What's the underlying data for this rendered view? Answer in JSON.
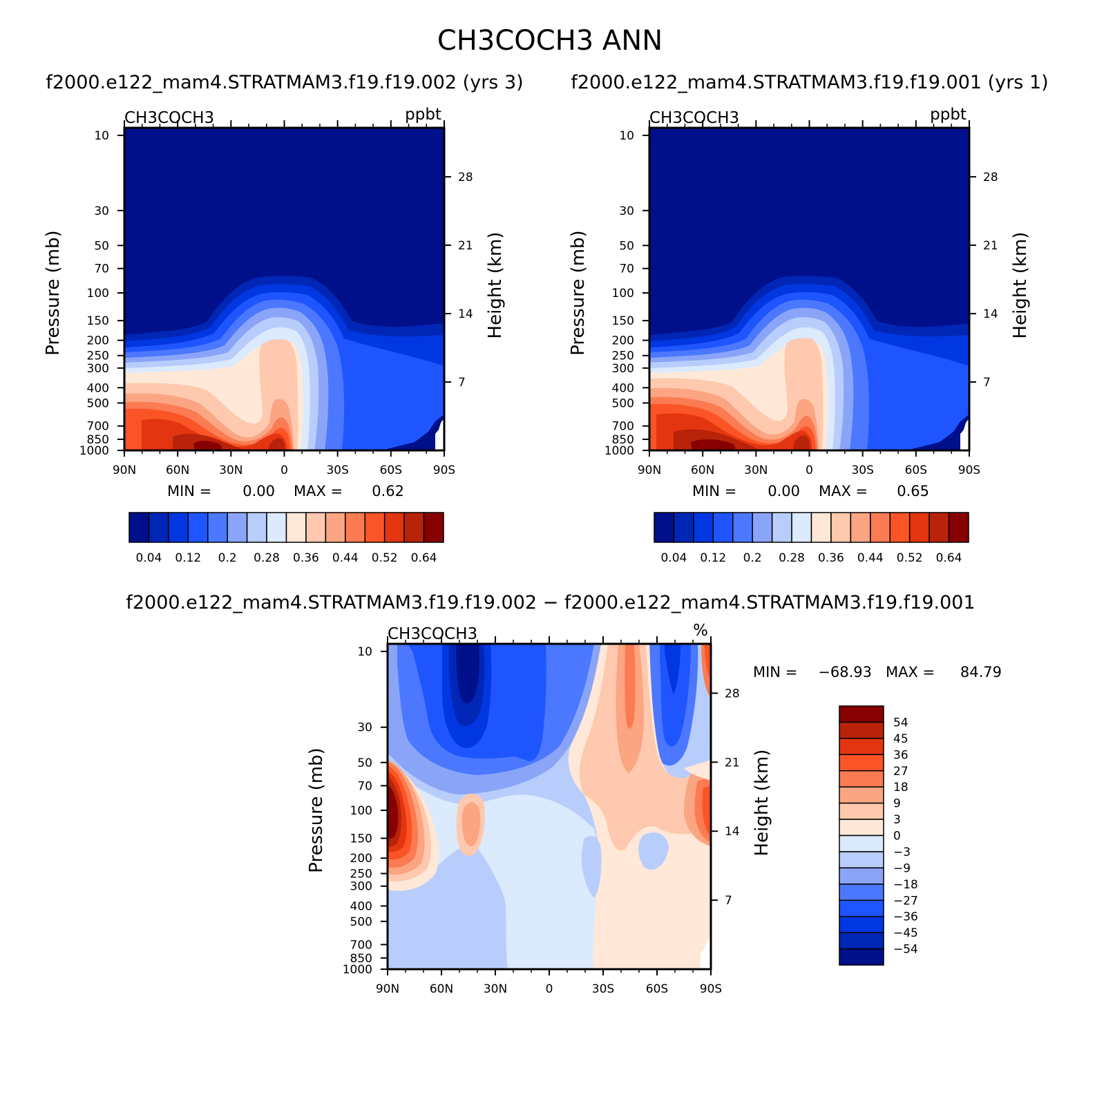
{
  "chart_data": [
    {
      "type": "contour",
      "panel": "left",
      "case_title": "f2000.e122_mam4.STRATMAM3.f19.f19.002 (yrs 3)",
      "variable": "CH3COCH3",
      "units": "ppbt",
      "ylabel_left": "Pressure (mb)",
      "ylabel_right": "Height (km)",
      "pressure_ticks": [
        "10",
        "30",
        "50",
        "70",
        "100",
        "150",
        "200",
        "250",
        "300",
        "400",
        "500",
        "700",
        "850",
        "1000"
      ],
      "height_ticks": [
        "28",
        "21",
        "14",
        "7"
      ],
      "lat_ticks": [
        "90N",
        "60N",
        "30N",
        "0",
        "30S",
        "60S",
        "90S"
      ],
      "min_label": "MIN =",
      "min_value": "0.00",
      "max_label": "MAX =",
      "max_value": "0.62",
      "colorbar_labels": [
        "0.04",
        "0.12",
        "0.2",
        "0.28",
        "0.36",
        "0.44",
        "0.52",
        "0.64"
      ],
      "colorbar_colors": [
        "#000f8a",
        "#0026b5",
        "#0037e0",
        "#1f55ff",
        "#4b78ff",
        "#8aa5f8",
        "#b8cdfc",
        "#dbeafc",
        "#ffe8d7",
        "#fec9ae",
        "#fca583",
        "#fb7b52",
        "#fb5426",
        "#e33510",
        "#b82309",
        "#870002"
      ]
    },
    {
      "type": "contour",
      "panel": "right",
      "case_title": "f2000.e122_mam4.STRATMAM3.f19.f19.001 (yrs 1)",
      "variable": "CH3COCH3",
      "units": "ppbt",
      "ylabel_left": "Pressure (mb)",
      "ylabel_right": "Height (km)",
      "pressure_ticks": [
        "10",
        "30",
        "50",
        "70",
        "100",
        "150",
        "200",
        "250",
        "300",
        "400",
        "500",
        "700",
        "850",
        "1000"
      ],
      "height_ticks": [
        "28",
        "21",
        "14",
        "7"
      ],
      "lat_ticks": [
        "90N",
        "60N",
        "30N",
        "0",
        "30S",
        "60S",
        "90S"
      ],
      "min_label": "MIN =",
      "min_value": "0.00",
      "max_label": "MAX =",
      "max_value": "0.65",
      "colorbar_labels": [
        "0.04",
        "0.12",
        "0.2",
        "0.28",
        "0.36",
        "0.44",
        "0.52",
        "0.64"
      ],
      "colorbar_colors": [
        "#000f8a",
        "#0026b5",
        "#0037e0",
        "#1f55ff",
        "#4b78ff",
        "#8aa5f8",
        "#b8cdfc",
        "#dbeafc",
        "#ffe8d7",
        "#fec9ae",
        "#fca583",
        "#fb7b52",
        "#fb5426",
        "#e33510",
        "#b82309",
        "#870002"
      ]
    },
    {
      "type": "contour",
      "panel": "difference",
      "case_title": "f2000.e122_mam4.STRATMAM3.f19.f19.002 − f2000.e122_mam4.STRATMAM3.f19.f19.001",
      "variable": "CH3COCH3",
      "units": "%",
      "ylabel_left": "Pressure (mb)",
      "ylabel_right": "Height (km)",
      "pressure_ticks": [
        "10",
        "30",
        "50",
        "70",
        "100",
        "150",
        "200",
        "250",
        "300",
        "400",
        "500",
        "700",
        "850",
        "1000"
      ],
      "height_ticks": [
        "28",
        "21",
        "14",
        "7"
      ],
      "lat_ticks": [
        "90N",
        "60N",
        "30N",
        "0",
        "30S",
        "60S",
        "90S"
      ],
      "min_label": "MIN =",
      "min_value": "−68.93",
      "max_label": "MAX =",
      "max_value": "84.79",
      "colorbar_labels": [
        "54",
        "45",
        "36",
        "27",
        "18",
        "9",
        "3",
        "0",
        "−3",
        "−9",
        "−18",
        "−27",
        "−36",
        "−45",
        "−54"
      ],
      "colorbar_colors": [
        "#870002",
        "#b82309",
        "#e33510",
        "#fb5426",
        "#fb7b52",
        "#fca583",
        "#fec9ae",
        "#ffe8d7",
        "#dbeafc",
        "#b8cdfc",
        "#8aa5f8",
        "#4b78ff",
        "#1f55ff",
        "#0037e0",
        "#0026b5",
        "#000f8a"
      ]
    }
  ],
  "main_title": "CH3COCH3  ANN",
  "colors": {
    "c0": "#000f8a",
    "c1": "#0026b5",
    "c2": "#0037e0",
    "c3": "#1f55ff",
    "c4": "#4b78ff",
    "c5": "#8aa5f8",
    "c6": "#b8cdfc",
    "c7": "#dbeafc",
    "c8": "#ffe8d7",
    "c9": "#fec9ae",
    "c10": "#fca583",
    "c11": "#fb7b52",
    "c12": "#fb5426",
    "c13": "#e33510",
    "c14": "#b82309",
    "c15": "#870002"
  }
}
